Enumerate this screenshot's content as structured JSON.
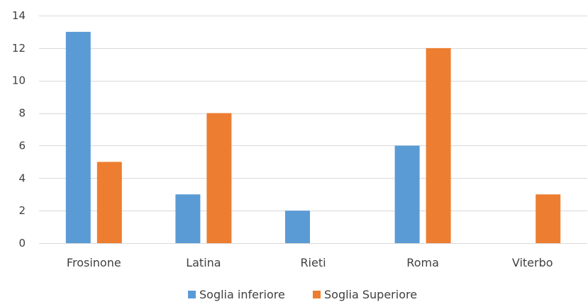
{
  "chart_data": {
    "type": "bar",
    "title": "",
    "xlabel": "",
    "ylabel": "",
    "categories": [
      "Frosinone",
      "Latina",
      "Rieti",
      "Roma",
      "Viterbo"
    ],
    "series": [
      {
        "name": "Soglia inferiore",
        "values": [
          13,
          3,
          2,
          6,
          0
        ],
        "color": "#5b9bd5"
      },
      {
        "name": "Soglia Superiore",
        "values": [
          5,
          8,
          0,
          12,
          3
        ],
        "color": "#ed7d31"
      }
    ],
    "ylim": [
      0,
      14
    ],
    "yticks": [
      0,
      2,
      4,
      6,
      8,
      10,
      12,
      14
    ],
    "grid": true,
    "legend": "bottom-center"
  }
}
